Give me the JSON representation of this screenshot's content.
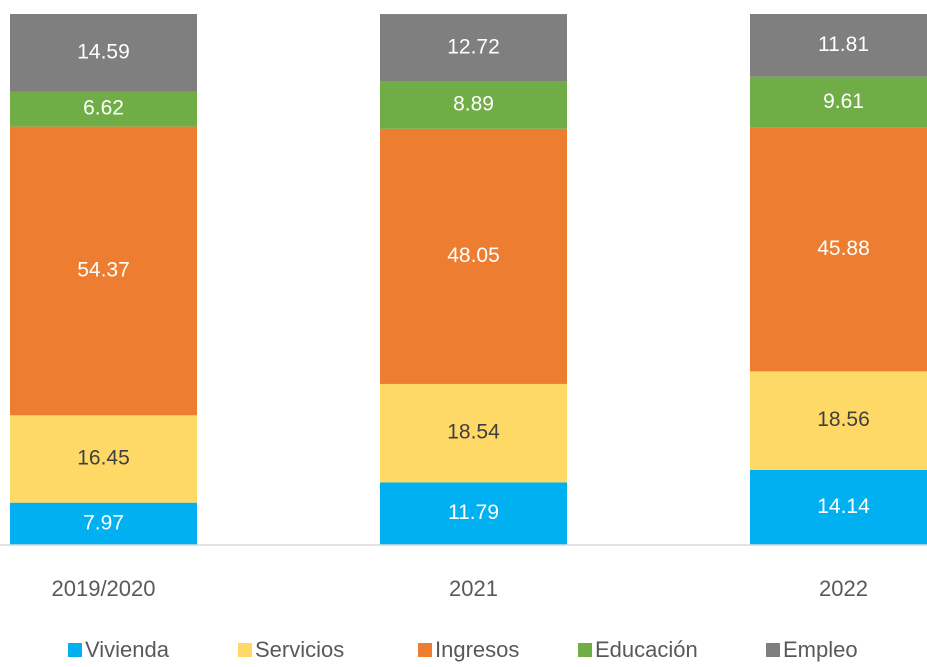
{
  "chart_data": {
    "type": "stacked_bar",
    "categories": [
      "2019/2020",
      "2021",
      "2022"
    ],
    "series": [
      {
        "name": "Vivienda",
        "color": "#00b0f0",
        "values": [
          7.97,
          11.79,
          14.14
        ]
      },
      {
        "name": "Servicios",
        "color": "#ffd966",
        "values": [
          16.45,
          18.54,
          18.56
        ]
      },
      {
        "name": "Ingresos",
        "color": "#ed7d31",
        "values": [
          54.37,
          48.05,
          45.88
        ]
      },
      {
        "name": "Educación",
        "color": "#70ad47",
        "values": [
          6.62,
          8.89,
          9.61
        ]
      },
      {
        "name": "Empleo",
        "color": "#7f7f7f",
        "values": [
          14.59,
          12.72,
          11.81
        ]
      }
    ],
    "ylim": [
      0,
      100
    ],
    "legend": "bottom"
  }
}
